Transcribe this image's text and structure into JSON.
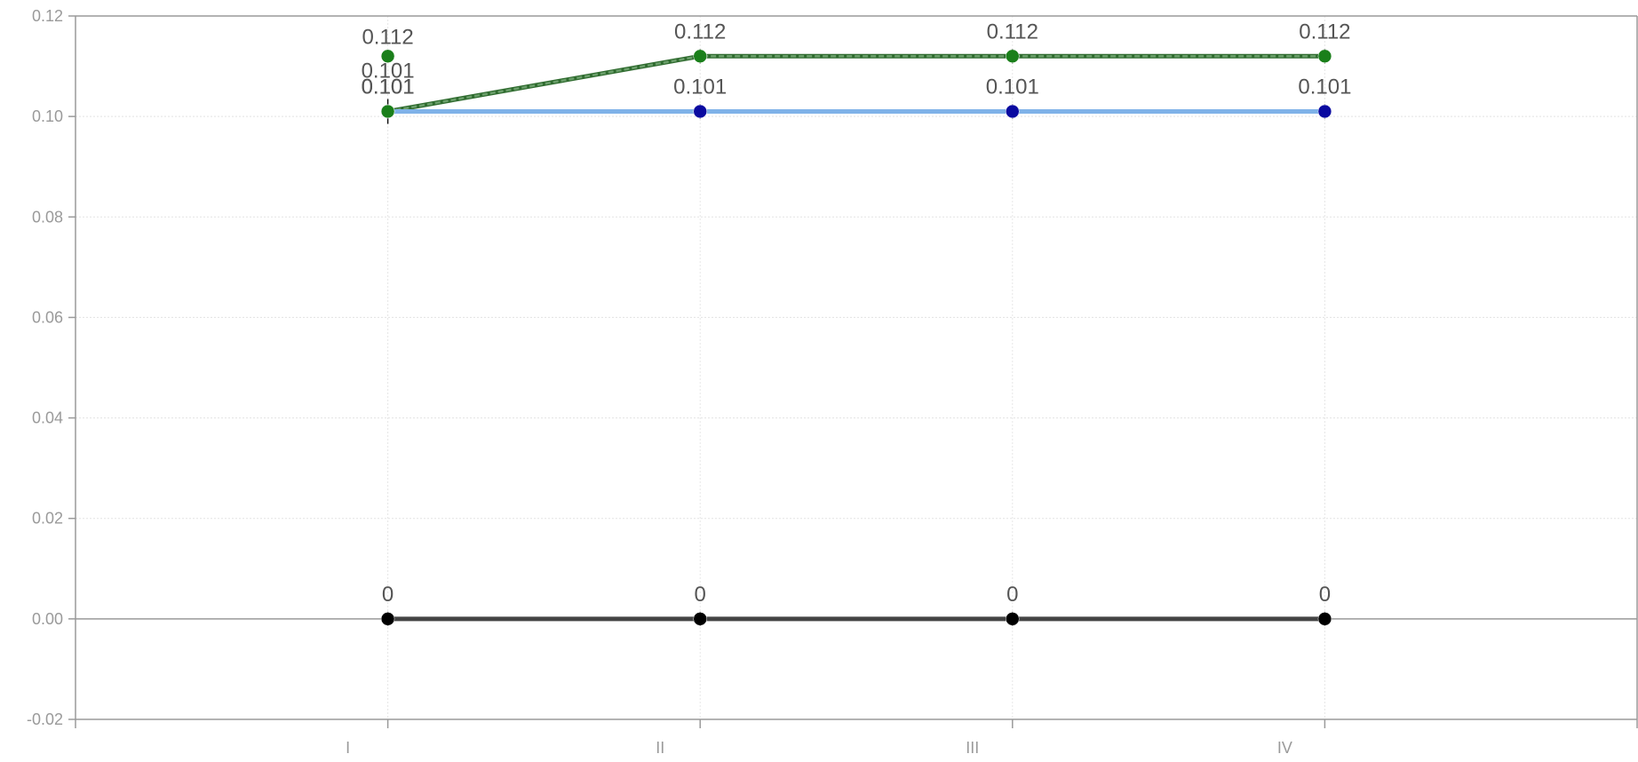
{
  "chart_data": {
    "type": "line",
    "categories": [
      "I",
      "II",
      "III",
      "IV"
    ],
    "ylim": [
      -0.02,
      0.12
    ],
    "yticks": [
      "0.12",
      "0.10",
      "0.08",
      "0.06",
      "0.04",
      "0.02",
      "0.00",
      "-0.02"
    ],
    "ytick_values": [
      0.12,
      0.1,
      0.08,
      0.06,
      0.04,
      0.02,
      0.0,
      -0.02
    ],
    "grid": true,
    "series": [
      {
        "color": "#1a7f1a",
        "line_color": "#6b9f6b",
        "line_style": "dashed",
        "values": [
          0.101,
          0.112,
          0.112,
          0.112
        ],
        "labels": [
          "0.101",
          "0.112",
          "0.112",
          "0.112"
        ]
      },
      {
        "color": "#0a0aa0",
        "line_color": "#7fb2e8",
        "line_style": "solid",
        "values": [
          0.101,
          0.101,
          0.101,
          0.101
        ],
        "labels": [
          "0.101",
          "0.101",
          "0.101",
          "0.101"
        ]
      },
      {
        "color": "#000000",
        "line_color": "#444444",
        "line_style": "solid",
        "values": [
          0,
          0,
          0,
          0
        ],
        "labels": [
          "0",
          "0",
          "0",
          "0"
        ]
      }
    ],
    "extra_points": [
      {
        "category": "I",
        "value": 0.112,
        "color": "#1a7f1a",
        "label": "0.112"
      },
      {
        "category": "I",
        "value": 0.101,
        "color": "#1a7f1a",
        "label": "0.101"
      }
    ]
  }
}
